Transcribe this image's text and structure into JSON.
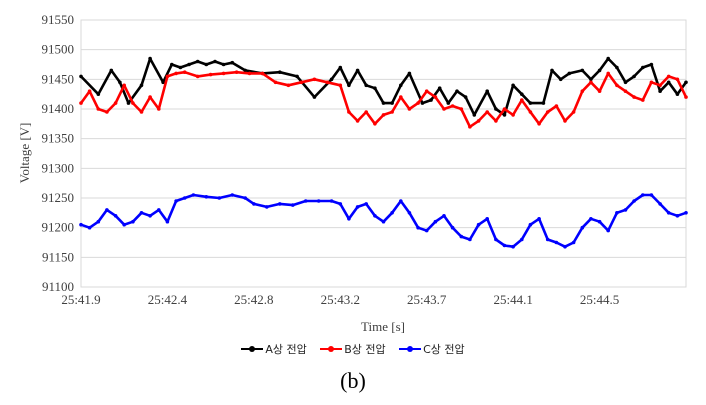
{
  "chart_data": {
    "type": "line",
    "xlabel": "Time [s]",
    "ylabel": "Voltage [V]",
    "ylim": [
      91100,
      91550
    ],
    "yticks": [
      91100,
      91150,
      91200,
      91250,
      91300,
      91350,
      91400,
      91450,
      91500,
      91550
    ],
    "xlim": [
      0,
      7
    ],
    "xtick_labels": [
      "25:41.9",
      "25:42.4",
      "25:42.8",
      "25:43.2",
      "25:43.7",
      "25:44.1",
      "25:44.5"
    ],
    "grid": true,
    "legend_position": "bottom",
    "colors": [
      "#000000",
      "#ff0000",
      "#0000ff"
    ],
    "series": [
      {
        "name": "A상 전압",
        "x": [
          0,
          0.2,
          0.35,
          0.45,
          0.55,
          0.7,
          0.8,
          0.95,
          1.05,
          1.15,
          1.25,
          1.35,
          1.45,
          1.55,
          1.65,
          1.75,
          1.9,
          2.1,
          2.3,
          2.5,
          2.7,
          2.9,
          3.0,
          3.1,
          3.2,
          3.3,
          3.4,
          3.5,
          3.6,
          3.7,
          3.8,
          3.95,
          4.05,
          4.15,
          4.25,
          4.35,
          4.45,
          4.55,
          4.7,
          4.8,
          4.9,
          5.0,
          5.1,
          5.2,
          5.35,
          5.45,
          5.55,
          5.65,
          5.8,
          5.9,
          6.0,
          6.1,
          6.2,
          6.3,
          6.4,
          6.5,
          6.6,
          6.7,
          6.8,
          6.9,
          7.0
        ],
        "y": [
          91455,
          91425,
          91465,
          91445,
          91410,
          91440,
          91485,
          91445,
          91475,
          91470,
          91475,
          91480,
          91475,
          91480,
          91475,
          91478,
          91465,
          91460,
          91462,
          91455,
          91420,
          91450,
          91470,
          91440,
          91465,
          91440,
          91435,
          91410,
          91410,
          91440,
          91460,
          91410,
          91415,
          91435,
          91410,
          91430,
          91420,
          91390,
          91430,
          91400,
          91390,
          91440,
          91425,
          91410,
          91410,
          91465,
          91450,
          91460,
          91465,
          91450,
          91465,
          91485,
          91470,
          91445,
          91455,
          91470,
          91475,
          91430,
          91445,
          91425,
          91445
        ]
      },
      {
        "name": "B상 전압",
        "x": [
          0,
          0.1,
          0.2,
          0.3,
          0.4,
          0.5,
          0.6,
          0.7,
          0.8,
          0.9,
          1.0,
          1.1,
          1.2,
          1.35,
          1.5,
          1.65,
          1.8,
          1.95,
          2.1,
          2.25,
          2.4,
          2.55,
          2.7,
          2.85,
          3.0,
          3.1,
          3.2,
          3.3,
          3.4,
          3.5,
          3.6,
          3.7,
          3.8,
          3.9,
          4.0,
          4.1,
          4.2,
          4.3,
          4.4,
          4.5,
          4.6,
          4.7,
          4.8,
          4.9,
          5.0,
          5.1,
          5.2,
          5.3,
          5.4,
          5.5,
          5.6,
          5.7,
          5.8,
          5.9,
          6.0,
          6.1,
          6.2,
          6.3,
          6.4,
          6.5,
          6.6,
          6.7,
          6.8,
          6.9,
          7.0
        ],
        "y": [
          91410,
          91430,
          91400,
          91395,
          91410,
          91440,
          91410,
          91395,
          91420,
          91400,
          91455,
          91460,
          91462,
          91455,
          91458,
          91460,
          91462,
          91460,
          91460,
          91445,
          91440,
          91445,
          91450,
          91445,
          91440,
          91395,
          91380,
          91395,
          91375,
          91390,
          91395,
          91420,
          91400,
          91410,
          91430,
          91420,
          91400,
          91405,
          91400,
          91370,
          91380,
          91395,
          91380,
          91400,
          91390,
          91415,
          91395,
          91375,
          91395,
          91405,
          91380,
          91395,
          91430,
          91445,
          91430,
          91460,
          91440,
          91430,
          91420,
          91415,
          91445,
          91440,
          91455,
          91450,
          91420
        ]
      },
      {
        "name": "C상 전압",
        "x": [
          0,
          0.1,
          0.2,
          0.3,
          0.4,
          0.5,
          0.6,
          0.7,
          0.8,
          0.9,
          1.0,
          1.1,
          1.2,
          1.3,
          1.45,
          1.6,
          1.75,
          1.9,
          2.0,
          2.15,
          2.3,
          2.45,
          2.6,
          2.75,
          2.9,
          3.0,
          3.1,
          3.2,
          3.3,
          3.4,
          3.5,
          3.6,
          3.7,
          3.8,
          3.9,
          4.0,
          4.1,
          4.2,
          4.3,
          4.4,
          4.5,
          4.6,
          4.7,
          4.8,
          4.9,
          5.0,
          5.1,
          5.2,
          5.3,
          5.4,
          5.5,
          5.6,
          5.7,
          5.8,
          5.9,
          6.0,
          6.1,
          6.2,
          6.3,
          6.4,
          6.5,
          6.6,
          6.7,
          6.8,
          6.9,
          7.0
        ],
        "y": [
          91205,
          91200,
          91210,
          91230,
          91220,
          91205,
          91210,
          91225,
          91220,
          91230,
          91210,
          91245,
          91250,
          91255,
          91252,
          91250,
          91255,
          91250,
          91240,
          91235,
          91240,
          91238,
          91245,
          91245,
          91245,
          91240,
          91215,
          91235,
          91240,
          91220,
          91210,
          91225,
          91245,
          91225,
          91200,
          91195,
          91210,
          91220,
          91200,
          91185,
          91180,
          91205,
          91215,
          91180,
          91170,
          91168,
          91180,
          91205,
          91215,
          91180,
          91175,
          91168,
          91175,
          91200,
          91215,
          91210,
          91195,
          91225,
          91230,
          91245,
          91255,
          91255,
          91240,
          91225,
          91220,
          91225
        ]
      }
    ]
  },
  "caption": "(b)"
}
